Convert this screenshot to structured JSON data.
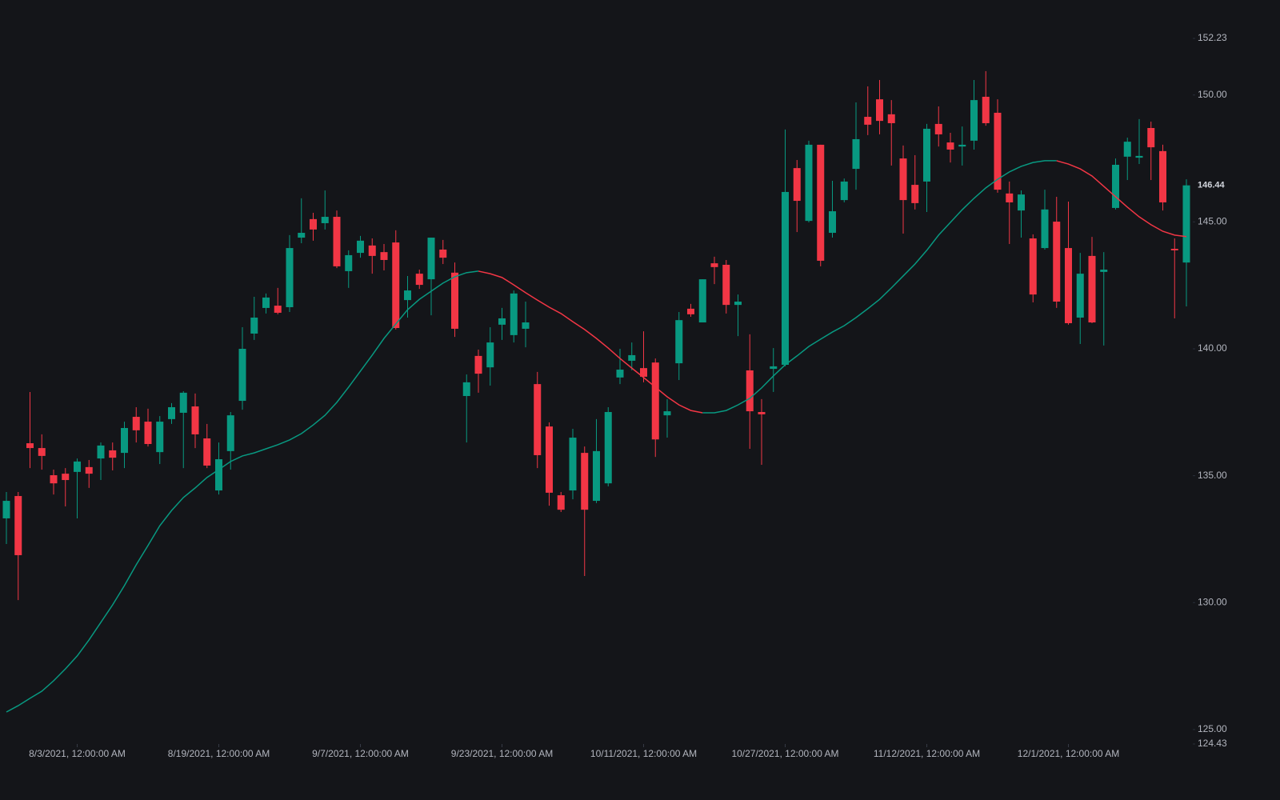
{
  "chart_data": {
    "type": "candlestick",
    "categories": [
      null,
      null,
      null,
      null,
      null,
      null,
      "8/3/2021, 12:00:00 AM",
      null,
      null,
      null,
      null,
      null,
      null,
      null,
      null,
      null,
      null,
      null,
      "8/19/2021, 12:00:00 AM",
      null,
      null,
      null,
      null,
      null,
      null,
      null,
      null,
      null,
      null,
      null,
      "9/7/2021, 12:00:00 AM",
      null,
      null,
      null,
      null,
      null,
      null,
      null,
      null,
      null,
      null,
      null,
      "9/23/2021, 12:00:00 AM",
      null,
      null,
      null,
      null,
      null,
      null,
      null,
      null,
      null,
      null,
      null,
      "10/11/2021, 12:00:00 AM",
      null,
      null,
      null,
      null,
      null,
      null,
      null,
      null,
      null,
      null,
      null,
      "10/27/2021, 12:00:00 AM",
      null,
      null,
      null,
      null,
      null,
      null,
      null,
      null,
      null,
      null,
      null,
      "11/12/2021, 12:00:00 AM",
      null,
      null,
      null,
      null,
      null,
      null,
      null,
      null,
      null,
      null,
      null,
      "12/1/2021, 12:00:00 AM",
      null,
      null,
      null,
      null,
      null,
      null,
      null,
      null,
      null,
      null
    ],
    "open": [
      133.32,
      134.2,
      136.28,
      136.09,
      135.02,
      135.08,
      135.15,
      135.34,
      135.68,
      136.0,
      135.9,
      137.32,
      137.13,
      135.93,
      137.23,
      137.48,
      137.73,
      136.47,
      134.42,
      135.97,
      137.95,
      140.6,
      141.61,
      141.7,
      141.64,
      144.38,
      145.11,
      144.95,
      145.2,
      143.06,
      143.78,
      144.07,
      143.81,
      144.19,
      141.92,
      142.96,
      142.74,
      143.91,
      143.0,
      138.14,
      139.72,
      139.27,
      140.95,
      140.54,
      140.79,
      138.61,
      136.94,
      134.23,
      134.42,
      135.9,
      134.01,
      134.7,
      138.87,
      139.53,
      139.24,
      139.46,
      137.38,
      139.43,
      141.58,
      141.04,
      143.37,
      143.31,
      141.73,
      139.15,
      137.51,
      139.21,
      139.37,
      147.12,
      145.04,
      148.04,
      144.57,
      145.86,
      147.09,
      149.14,
      149.83,
      149.24,
      147.5,
      146.46,
      146.59,
      148.86,
      148.13,
      147.97,
      148.2,
      149.93,
      149.3,
      146.12,
      145.45,
      144.35,
      143.97,
      145.01,
      143.97,
      141.23,
      143.66,
      143.03,
      145.55,
      147.57,
      147.53,
      148.7,
      147.79,
      143.94,
      143.4
    ],
    "high": [
      134.36,
      134.36,
      138.3,
      136.63,
      135.24,
      135.3,
      135.68,
      135.62,
      136.31,
      136.31,
      137.13,
      137.7,
      137.64,
      137.35,
      137.86,
      138.33,
      138.24,
      137.04,
      136.31,
      137.51,
      140.85,
      142.05,
      142.18,
      142.4,
      144.48,
      145.93,
      145.36,
      146.24,
      145.45,
      143.88,
      144.45,
      144.35,
      144.13,
      144.67,
      142.87,
      143.12,
      144.38,
      144.29,
      143.4,
      138.99,
      139.97,
      140.85,
      141.61,
      142.3,
      141.86,
      139.09,
      137.1,
      134.36,
      136.85,
      136.15,
      137.23,
      137.7,
      140.0,
      140.25,
      140.69,
      139.62,
      138.02,
      141.45,
      141.77,
      142.74,
      143.63,
      143.5,
      142.14,
      140.57,
      138.02,
      140.03,
      148.64,
      147.44,
      148.2,
      148.04,
      146.62,
      146.71,
      149.71,
      150.34,
      150.59,
      149.8,
      148.01,
      147.63,
      148.86,
      149.55,
      148.51,
      148.76,
      150.59,
      150.94,
      149.83,
      146.59,
      146.24,
      144.51,
      146.27,
      145.99,
      145.8,
      143.78,
      144.41,
      143.81,
      147.5,
      148.32,
      149.05,
      148.95,
      148.04,
      144.35,
      146.68
    ],
    "low": [
      132.31,
      130.1,
      135.3,
      135.24,
      134.26,
      133.79,
      133.32,
      134.52,
      134.83,
      135.21,
      135.3,
      136.31,
      136.15,
      135.46,
      137.04,
      135.3,
      136.09,
      135.3,
      134.26,
      135.24,
      137.6,
      140.35,
      141.39,
      141.36,
      141.45,
      144.16,
      144.26,
      144.7,
      143.18,
      142.4,
      143.59,
      142.96,
      143.09,
      140.76,
      141.23,
      142.36,
      141.32,
      143.34,
      140.47,
      136.31,
      138.27,
      138.55,
      140.35,
      140.25,
      140.06,
      135.3,
      133.82,
      133.57,
      134.07,
      131.05,
      133.92,
      134.58,
      138.61,
      139.15,
      138.68,
      135.74,
      136.5,
      138.77,
      141.26,
      141.04,
      142.55,
      141.39,
      140.5,
      136.06,
      135.43,
      138.3,
      139.31,
      144.6,
      144.98,
      143.25,
      144.38,
      145.77,
      146.27,
      148.42,
      148.45,
      147.22,
      144.54,
      145.49,
      145.39,
      147.97,
      147.34,
      147.22,
      147.85,
      148.79,
      146.15,
      144.13,
      144.38,
      141.83,
      143.91,
      141.61,
      140.95,
      140.19,
      141.01,
      140.13,
      145.49,
      146.65,
      147.28,
      146.65,
      145.45,
      141.2,
      141.67
    ],
    "close": [
      134.01,
      131.87,
      136.09,
      135.78,
      134.7,
      134.83,
      135.56,
      135.08,
      136.19,
      135.71,
      136.88,
      136.79,
      136.25,
      137.13,
      137.7,
      138.27,
      136.63,
      135.4,
      135.65,
      137.38,
      140.0,
      141.23,
      142.02,
      141.42,
      143.97,
      144.57,
      144.7,
      145.2,
      143.25,
      143.69,
      144.26,
      143.66,
      143.5,
      140.82,
      142.3,
      142.52,
      144.38,
      143.59,
      140.79,
      138.68,
      139.02,
      140.25,
      141.2,
      142.18,
      141.04,
      135.81,
      134.33,
      133.66,
      136.5,
      133.66,
      135.97,
      137.51,
      139.18,
      139.75,
      138.9,
      136.43,
      137.54,
      141.13,
      141.36,
      142.74,
      143.22,
      141.73,
      141.86,
      137.54,
      137.42,
      139.31,
      146.18,
      145.83,
      148.04,
      143.47,
      145.42,
      146.59,
      148.26,
      148.83,
      148.98,
      148.89,
      145.86,
      145.74,
      148.67,
      148.45,
      147.85,
      148.04,
      149.8,
      148.89,
      146.27,
      145.77,
      146.08,
      142.14,
      145.49,
      141.86,
      141.01,
      142.96,
      141.04,
      143.12,
      147.25,
      148.16,
      147.6,
      147.94,
      145.77,
      143.88,
      146.44
    ],
    "moving_average": {
      "values": [
        125.69,
        125.94,
        126.23,
        126.51,
        126.92,
        127.39,
        127.9,
        128.53,
        129.22,
        129.91,
        130.67,
        131.49,
        132.25,
        133.03,
        133.63,
        134.14,
        134.52,
        134.93,
        135.24,
        135.56,
        135.78,
        135.9,
        136.06,
        136.22,
        136.41,
        136.66,
        137.0,
        137.38,
        137.89,
        138.49,
        139.12,
        139.75,
        140.41,
        140.98,
        141.54,
        141.95,
        142.27,
        142.59,
        142.84,
        143.0,
        143.06,
        142.96,
        142.81,
        142.52,
        142.21,
        141.92,
        141.64,
        141.39,
        141.07,
        140.76,
        140.41,
        140.03,
        139.62,
        139.24,
        138.87,
        138.49,
        138.11,
        137.79,
        137.57,
        137.48,
        137.48,
        137.57,
        137.79,
        138.05,
        138.46,
        138.93,
        139.37,
        139.72,
        140.09,
        140.38,
        140.66,
        140.91,
        141.23,
        141.58,
        141.95,
        142.4,
        142.87,
        143.34,
        143.88,
        144.48,
        144.98,
        145.48,
        145.93,
        146.34,
        146.68,
        146.97,
        147.19,
        147.34,
        147.41,
        147.41,
        147.28,
        147.09,
        146.81,
        146.4,
        145.99,
        145.58,
        145.2,
        144.89,
        144.63,
        144.48,
        144.42
      ]
    },
    "up_color": "#089981",
    "down_color": "#f23645",
    "ylim": [
      124.43,
      152.23
    ],
    "yticks": [
      {
        "value": 124.43,
        "label": "124.43"
      },
      {
        "value": 125,
        "label": "125.00"
      },
      {
        "value": 130,
        "label": "130.00"
      },
      {
        "value": 135,
        "label": "135.00"
      },
      {
        "value": 140,
        "label": "140.00"
      },
      {
        "value": 145,
        "label": "145.00"
      },
      {
        "value": 150,
        "label": "150.00"
      },
      {
        "value": 152.23,
        "label": "152.23"
      }
    ]
  }
}
